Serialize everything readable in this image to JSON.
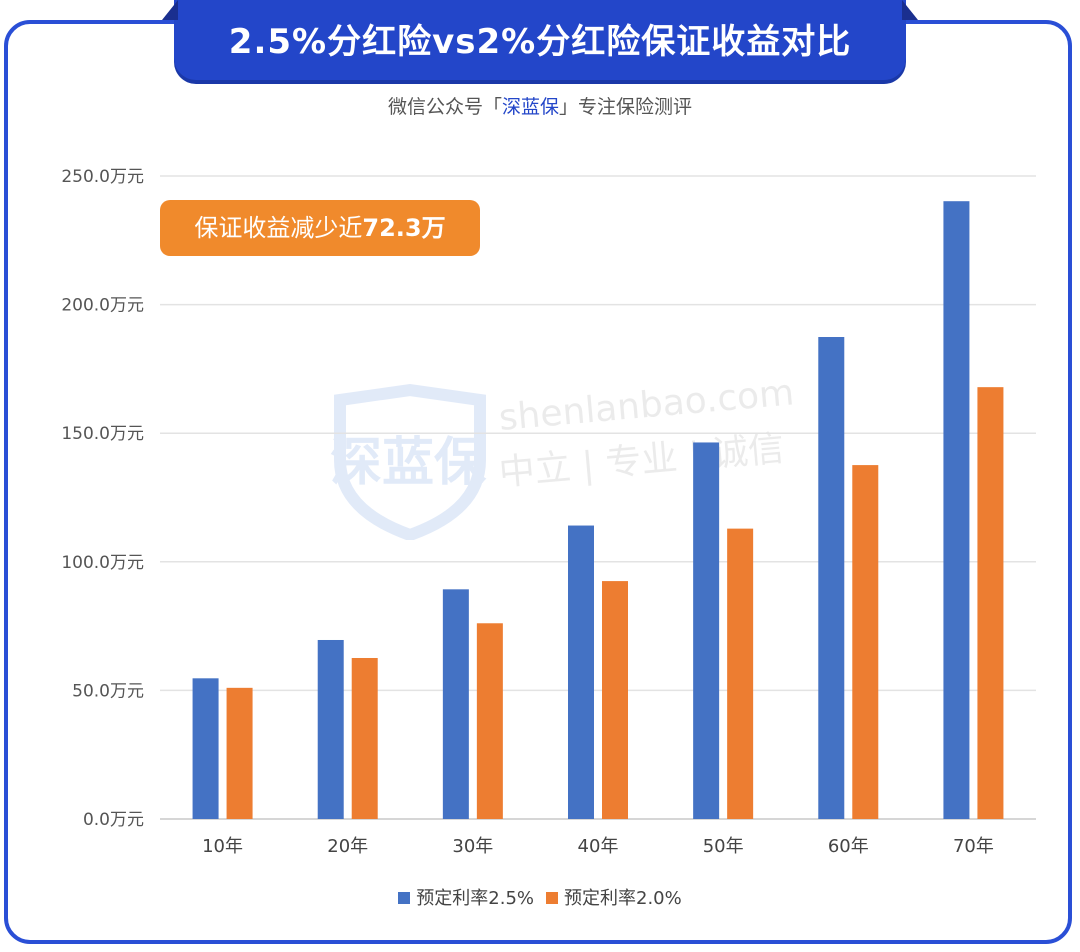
{
  "header": {
    "title": "2.5%分红险vs2%分红险保证收益对比",
    "subtitle_prefix": "微信公众号「",
    "subtitle_brand": "深蓝保",
    "subtitle_suffix": "」专注保险测评"
  },
  "callout": {
    "text": "保证收益减少近",
    "value": "72.3万"
  },
  "watermark": {
    "logo_text": "深蓝保",
    "domain": "shenlanbao.com",
    "slogan": "中立 | 专业 | 诚信"
  },
  "colors": {
    "series_1": "#4472c4",
    "series_2": "#ed7d31",
    "frame": "#2a4fd6"
  },
  "chart_data": {
    "type": "bar",
    "categories": [
      "10年",
      "20年",
      "30年",
      "40年",
      "50年",
      "60年",
      "70年"
    ],
    "series": [
      {
        "name": "预定利率2.5%",
        "values": [
          54.7,
          69.6,
          89.3,
          114.1,
          146.4,
          187.4,
          240.2
        ]
      },
      {
        "name": "预定利率2.0%",
        "values": [
          51.0,
          62.6,
          76.1,
          92.5,
          112.9,
          137.6,
          167.9
        ]
      }
    ],
    "ylim": [
      0,
      250
    ],
    "yticks": [
      "0.0万元",
      "50.0万元",
      "100.0万元",
      "150.0万元",
      "200.0万元",
      "250.0万元"
    ],
    "grid": true,
    "legend": "bottom"
  }
}
